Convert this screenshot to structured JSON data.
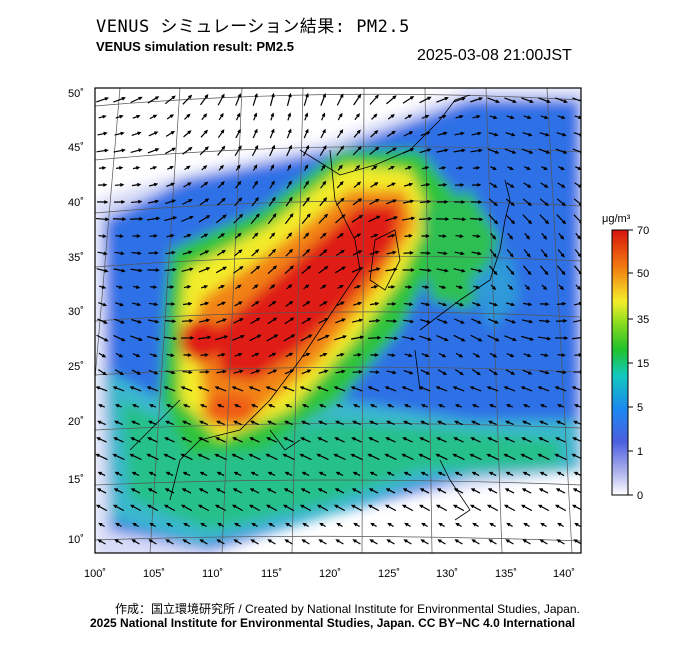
{
  "header": {
    "title_jp": "VENUS シミュレーション結果: PM2.5",
    "title_en": "VENUS simulation result: PM2.5",
    "timestamp": "2025-03-08 21:00JST"
  },
  "map": {
    "lon_range": [
      100,
      142
    ],
    "lat_range": [
      9,
      51
    ],
    "lon_ticks": [
      "100˚",
      "105˚",
      "110˚",
      "115˚",
      "120˚",
      "125˚",
      "130˚",
      "135˚",
      "140˚"
    ],
    "lat_ticks": [
      "50˚",
      "45˚",
      "40˚",
      "35˚",
      "30˚",
      "25˚",
      "20˚",
      "15˚",
      "10˚"
    ],
    "colors": {
      "low": "#f2f2ff",
      "blue": "#2a72e6",
      "green": "#27c23a",
      "yellow": "#f4f02c",
      "orange": "#f07d10",
      "red": "#e01a12"
    }
  },
  "colorbar": {
    "unit": "μg/m³",
    "tick_labels": [
      "70",
      "50",
      "35",
      "15",
      "5",
      "1",
      "0"
    ]
  },
  "footer": {
    "credit_line": "作成：国立環境研究所 / Created by National Institute for Environmental Studies, Japan.",
    "copyright_line": "2025 National Institute for Environmental Studies, Japan. CC BY−NC 4.0 International"
  }
}
